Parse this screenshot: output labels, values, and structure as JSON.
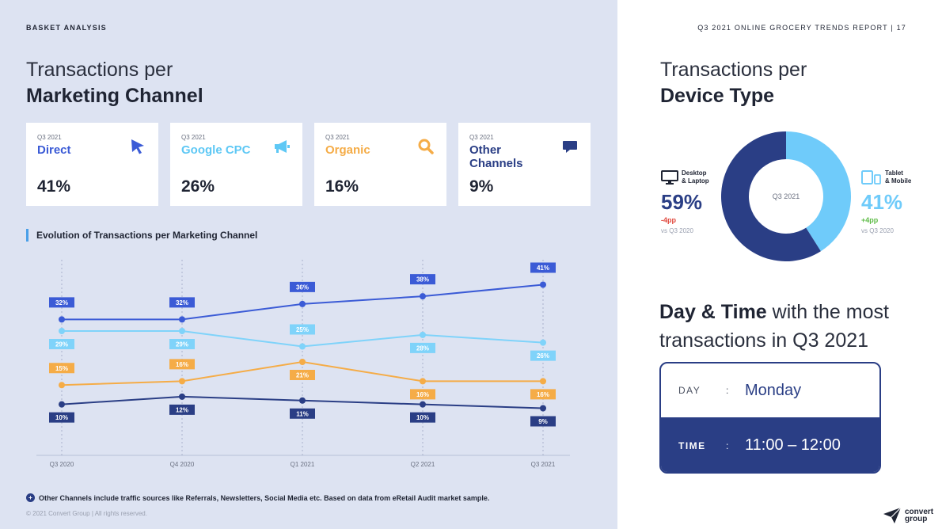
{
  "header": {
    "section": "BASKET ANALYSIS",
    "report": "Q3 2021 ONLINE GROCERY TRENDS REPORT  |  17"
  },
  "left_title": {
    "light": "Transactions per",
    "bold": "Marketing Channel"
  },
  "cards": [
    {
      "period": "Q3 2021",
      "name": "Direct",
      "value": "41%",
      "color": "#3b5bd6",
      "icon": "cursor-icon"
    },
    {
      "period": "Q3 2021",
      "name": "Google CPC",
      "value": "26%",
      "color": "#5ec8f5",
      "icon": "megaphone-icon"
    },
    {
      "period": "Q3 2021",
      "name": "Organic",
      "value": "16%",
      "color": "#f5ac47",
      "icon": "search-icon"
    },
    {
      "period": "Q3 2021",
      "name": "Other Channels",
      "value": "9%",
      "color": "#2a3e85",
      "icon": "chat-bubble-icon"
    }
  ],
  "chart_title": "Evolution of Transactions per Marketing Channel",
  "chart_data": [
    {
      "type": "line",
      "title": "Evolution of Transactions per Marketing Channel",
      "categories": [
        "Q3 2020",
        "Q4 2020",
        "Q1 2021",
        "Q2 2021",
        "Q3 2021"
      ],
      "series": [
        {
          "name": "Direct",
          "values": [
            32,
            32,
            36,
            38,
            41
          ],
          "color": "#3b5bd6"
        },
        {
          "name": "Google CPC",
          "values": [
            29,
            29,
            25,
            28,
            26
          ],
          "color": "#7fd3fa"
        },
        {
          "name": "Organic",
          "values": [
            15,
            16,
            21,
            16,
            16
          ],
          "color": "#f5ac47"
        },
        {
          "name": "Other Channels",
          "values": [
            10,
            12,
            11,
            10,
            9
          ],
          "color": "#2a3e85"
        }
      ],
      "value_suffix": "%",
      "grid": "vertical-dashed"
    },
    {
      "type": "pie",
      "title": "Transactions per Device Type",
      "center_label": "Q3 2021",
      "slices": [
        {
          "name": "Desktop & Laptop",
          "value": 59,
          "color": "#2a3e85"
        },
        {
          "name": "Tablet & Mobile",
          "value": 41,
          "color": "#6fcbfa"
        }
      ]
    }
  ],
  "footnote": "Other Channels include traffic sources like Referrals, Newsletters, Social Media etc. Based on data from eRetail Audit market sample.",
  "copyright": "© 2021 Convert Group  |  All rights reserved.",
  "right_title": {
    "light": "Transactions per",
    "bold": "Device Type"
  },
  "devices": {
    "desktop": {
      "label_1": "Desktop",
      "label_2": "& Laptop",
      "pct": "59%",
      "delta": "-4pp",
      "vs": "vs Q3 2020",
      "color": "#2a3e85",
      "delta_color": "#e0453a"
    },
    "mobile": {
      "label_1": "Tablet",
      "label_2": "& Mobile",
      "pct": "41%",
      "delta": "+4pp",
      "vs": "vs Q3 2020",
      "color": "#6fcbfa",
      "delta_color": "#5dbb46"
    }
  },
  "day_title": {
    "bold": "Day & Time",
    "light_1": " with the most",
    "light_2": "transactions in Q3 2021"
  },
  "daytime": {
    "day_key": "DAY",
    "day_value": "Monday",
    "time_key": "TIME",
    "time_value": "11:00 – 12:00",
    "sep": ":"
  },
  "logo": {
    "line1": "convert",
    "line2": "group"
  }
}
